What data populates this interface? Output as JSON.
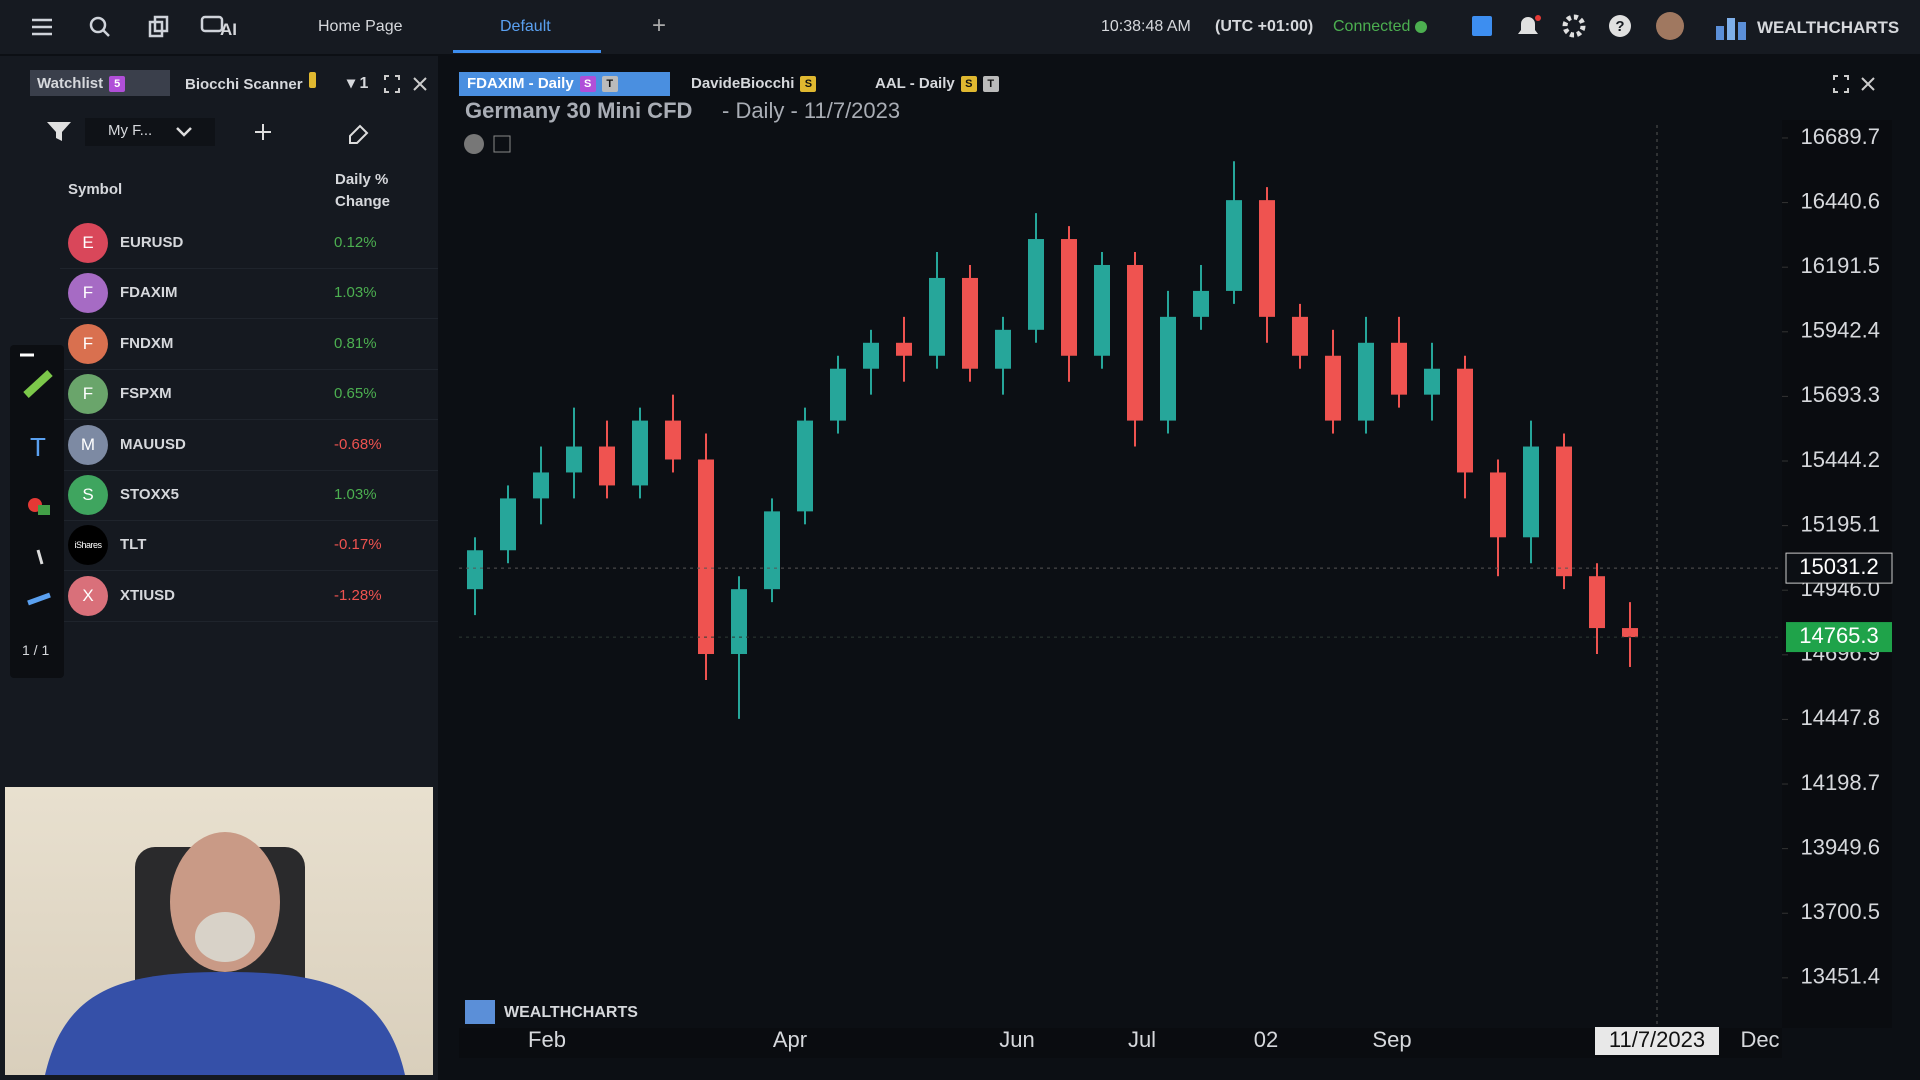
{
  "header": {
    "nav": [
      "Home Page",
      "Default"
    ],
    "ai": "AI",
    "time": "10:38:48 AM",
    "timezone": "(UTC +01:00)",
    "status": "Connected",
    "brand": "WEALTHCHARTS"
  },
  "watchlist_panel": {
    "tabs": [
      {
        "label": "Watchlist",
        "badge": "5"
      },
      {
        "label": "Biocchi Scanner"
      }
    ],
    "layout_count": "1",
    "filter": "My F...",
    "columns": [
      "Symbol",
      "Daily % Change"
    ],
    "rows": [
      {
        "icon": "E",
        "symbol": "EURUSD",
        "change": "0.12%",
        "color": "#d9475a"
      },
      {
        "icon": "F",
        "symbol": "FDAXIM",
        "change": "1.03%",
        "color": "#a66bc4"
      },
      {
        "icon": "F",
        "symbol": "FNDXM",
        "change": "0.81%",
        "color": "#d9704f"
      },
      {
        "icon": "F",
        "symbol": "FSPXM",
        "change": "0.65%",
        "color": "#6aa56b"
      },
      {
        "icon": "M",
        "symbol": "MAUUSD",
        "change": "-0.68%",
        "color": "#7d8aa3"
      },
      {
        "icon": "S",
        "symbol": "STOXX5",
        "change": "1.03%",
        "color": "#3fa55f"
      },
      {
        "icon": "iShares",
        "symbol": "TLT",
        "change": "-0.17%",
        "color": "#000000"
      },
      {
        "icon": "X",
        "symbol": "XTIUSD",
        "change": "-1.28%",
        "color": "#d9707a"
      }
    ],
    "toolbar_page": "1 / 1"
  },
  "chart_tabs": [
    {
      "label": "FDAXIM - Daily",
      "badges": [
        "S",
        "T"
      ]
    },
    {
      "label": "DavideBiocchi",
      "badges": [
        "S"
      ]
    },
    {
      "label": "AAL - Daily",
      "badges": [
        "S",
        "T"
      ]
    }
  ],
  "chart_data": {
    "type": "candlestick",
    "title": "Germany 30 Mini CFD",
    "subtitle": "- Daily - 11/7/2023",
    "watermark": "WEALTHCHARTS",
    "candles": [
      [
        14950,
        15150,
        14850,
        15100
      ],
      [
        15100,
        15350,
        15050,
        15300
      ],
      [
        15300,
        15500,
        15200,
        15400
      ],
      [
        15400,
        15650,
        15300,
        15500
      ],
      [
        15500,
        15600,
        15300,
        15350
      ],
      [
        15350,
        15650,
        15300,
        15600
      ],
      [
        15600,
        15700,
        15400,
        15450
      ],
      [
        15450,
        15550,
        14600,
        14700
      ],
      [
        14700,
        15000,
        14450,
        14950
      ],
      [
        14950,
        15300,
        14900,
        15250
      ],
      [
        15250,
        15650,
        15200,
        15600
      ],
      [
        15600,
        15850,
        15550,
        15800
      ],
      [
        15800,
        15950,
        15700,
        15900
      ],
      [
        15900,
        16000,
        15750,
        15850
      ],
      [
        15850,
        16250,
        15800,
        16150
      ],
      [
        16150,
        16200,
        15750,
        15800
      ],
      [
        15800,
        16000,
        15700,
        15950
      ],
      [
        15950,
        16400,
        15900,
        16300
      ],
      [
        16300,
        16350,
        15750,
        15850
      ],
      [
        15850,
        16250,
        15800,
        16200
      ],
      [
        16200,
        16250,
        15500,
        15600
      ],
      [
        15600,
        16100,
        15550,
        16000
      ],
      [
        16000,
        16200,
        15950,
        16100
      ],
      [
        16100,
        16600,
        16050,
        16450
      ],
      [
        16450,
        16500,
        15900,
        16000
      ],
      [
        16000,
        16050,
        15800,
        15850
      ],
      [
        15850,
        15950,
        15550,
        15600
      ],
      [
        15600,
        16000,
        15550,
        15900
      ],
      [
        15900,
        16000,
        15650,
        15700
      ],
      [
        15700,
        15900,
        15600,
        15800
      ],
      [
        15800,
        15850,
        15300,
        15400
      ],
      [
        15400,
        15450,
        15000,
        15150
      ],
      [
        15150,
        15600,
        15050,
        15500
      ],
      [
        15500,
        15550,
        14950,
        15000
      ],
      [
        15000,
        15050,
        14700,
        14800
      ],
      [
        14800,
        14900,
        14650,
        14765.3
      ]
    ],
    "up_color": "#26a69a",
    "down_color": "#ef5350",
    "ylim": [
      13258,
      16759
    ],
    "yticks": [
      16689.7,
      16440.6,
      16191.5,
      15942.4,
      15693.3,
      15444.2,
      15195.1,
      {
        "value": 14946,
        "label": "14946.0"
      },
      14696.9,
      14447.8,
      14198.7,
      13949.6,
      13700.5,
      13451.4
    ],
    "x_labels": [
      "Feb",
      "Apr",
      "Jun",
      "Jul",
      "02",
      "Sep",
      "Dec"
    ],
    "crosshair_date": "11/7/2023",
    "crosshair_price": 15031.2,
    "last_price": 14765.3
  }
}
